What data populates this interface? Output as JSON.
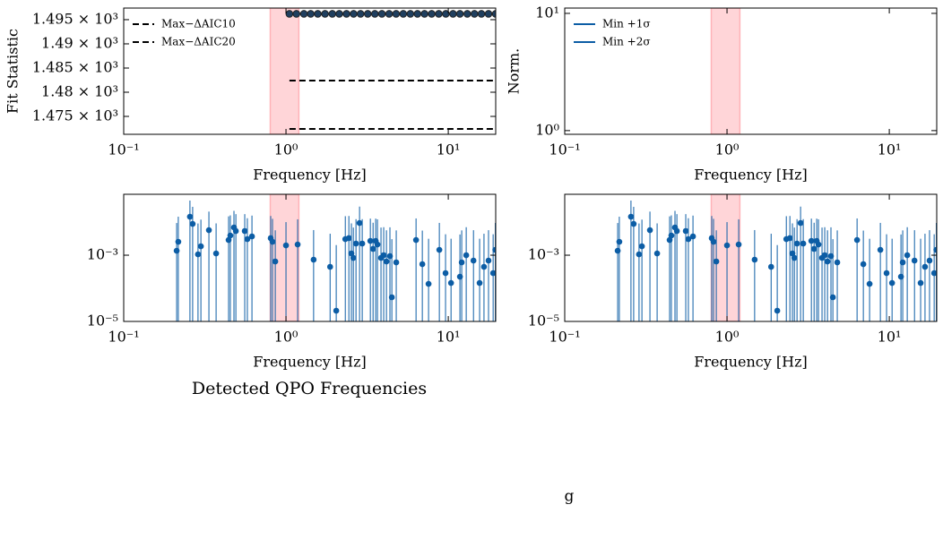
{
  "chart_data": [
    {
      "type": "scatter",
      "ylabel": "Fit Statistic",
      "xlabel": "Frequency [Hz]",
      "xscale": "log",
      "yscale": "linear",
      "xlim": [
        0.1,
        19.6
      ],
      "ylim": [
        1471.3,
        1497.4
      ],
      "xticks": [
        {
          "value": 0.1,
          "label": "10⁻¹"
        },
        {
          "value": 1,
          "label": "10⁰"
        },
        {
          "value": 10,
          "label": "10¹"
        }
      ],
      "yticks": [
        {
          "value": 1475,
          "label": "1.475 × 10³"
        },
        {
          "value": 1480,
          "label": "1.48 × 10³"
        },
        {
          "value": 1485,
          "label": "1.485 × 10³"
        },
        {
          "value": 1490,
          "label": "1.49 × 10³"
        },
        {
          "value": 1495,
          "label": "1.495 × 10³"
        }
      ],
      "shaded_region": {
        "span": [
          0.8,
          1.2
        ],
        "color": "#ffb3b8"
      },
      "series": [
        {
          "color": "#1f3f5f",
          "x": [
            1.05,
            1.16,
            1.29,
            1.42,
            1.57,
            1.74,
            1.93,
            2.13,
            2.36,
            2.61,
            2.88,
            3.19,
            3.53,
            3.9,
            4.32,
            4.77,
            5.28,
            5.84,
            6.46,
            7.14,
            7.9,
            8.74,
            9.66,
            10.7,
            11.8,
            13.1,
            14.5,
            16.0,
            17.7,
            19.6
          ],
          "values": [
            1496.2,
            1496.2,
            1496.2,
            1496.2,
            1496.2,
            1496.2,
            1496.2,
            1496.2,
            1496.2,
            1496.2,
            1496.2,
            1496.2,
            1496.2,
            1496.2,
            1496.2,
            1496.2,
            1496.2,
            1496.2,
            1496.2,
            1496.2,
            1496.2,
            1496.2,
            1496.2,
            1496.2,
            1496.2,
            1496.2,
            1496.2,
            1496.2,
            1496.2,
            1496.2
          ]
        }
      ],
      "hlines": [
        {
          "name": "Max−ΔAIC10",
          "y": 1482.4,
          "xmin": 1.05,
          "color": "#000000",
          "style": "dashed"
        },
        {
          "name": "Max−ΔAIC20",
          "y": 1472.4,
          "xmin": 1.05,
          "color": "#000000",
          "style": "dashed"
        }
      ],
      "legend": "upper left"
    },
    {
      "type": "line",
      "ylabel": "Norm.",
      "xlabel": "Frequency [Hz]",
      "xscale": "log",
      "yscale": "log",
      "xlim": [
        0.1,
        19.6
      ],
      "ylim": [
        0.93,
        11.1
      ],
      "xticks": [
        {
          "value": 0.1,
          "label": "10⁻¹"
        },
        {
          "value": 1,
          "label": "10⁰"
        },
        {
          "value": 10,
          "label": "10¹"
        }
      ],
      "yticks": [
        {
          "value": 1,
          "label": "10⁰"
        },
        {
          "value": 10,
          "label": "10¹"
        }
      ],
      "shaded_region": {
        "span": [
          0.8,
          1.2
        ],
        "color": "#ffb3b8"
      },
      "series": [
        {
          "name": "Min +1σ",
          "color": "#0c5da5"
        },
        {
          "name": "Min +2σ",
          "color": "#0c5da5"
        }
      ],
      "legend": "upper left"
    },
    {
      "type": "errorbar",
      "xlabel": "Frequency [Hz]",
      "xscale": "log",
      "yscale": "log",
      "xlim": [
        0.1,
        19.6
      ],
      "ylim": [
        1e-05,
        0.069
      ],
      "xticks": [
        {
          "value": 0.1,
          "label": "10⁻¹"
        },
        {
          "value": 1,
          "label": "10⁰"
        },
        {
          "value": 10,
          "label": "10¹"
        }
      ],
      "yticks": [
        {
          "value": 1e-05,
          "label": "10⁻⁵"
        },
        {
          "value": 0.001,
          "label": "10⁻³"
        }
      ],
      "shaded_region": {
        "span": [
          0.8,
          1.2
        ],
        "color": "#ffb3b8"
      },
      "series": [
        {
          "color": "#0c5da5",
          "x": [
            0.212,
            0.217,
            0.256,
            0.266,
            0.287,
            0.299,
            0.335,
            0.371,
            0.443,
            0.454,
            0.478,
            0.491,
            0.557,
            0.578,
            0.617,
            0.805,
            0.826,
            0.859,
            1.0,
            1.18,
            1.48,
            1.87,
            2.04,
            2.32,
            2.44,
            2.53,
            2.6,
            2.7,
            2.84,
            2.95,
            3.31,
            3.44,
            3.57,
            3.66,
            3.85,
            4.0,
            4.16,
            4.37,
            4.49,
            4.78,
            6.33,
            6.92,
            7.56,
            8.81,
            9.62,
            10.4,
            11.8,
            12.1,
            12.9,
            14.3,
            15.6,
            16.6,
            17.7,
            18.9,
            19.5
          ],
          "values": [
            0.00136,
            0.00254,
            0.0145,
            0.00883,
            0.00106,
            0.00186,
            0.00571,
            0.00113,
            0.00288,
            0.00393,
            0.00689,
            0.00537,
            0.00537,
            0.00306,
            0.0037,
            0.00327,
            0.00254,
            0.000647,
            0.00198,
            0.00211,
            0.000733,
            0.000446,
            2.11e-05,
            0.00306,
            0.00327,
            0.00113,
            0.00083,
            0.00225,
            0.0094,
            0.00225,
            0.0027,
            0.00155,
            0.0027,
            0.00211,
            0.00083,
            0.001,
            0.000647,
            0.00094,
            5.37e-05,
            0.000608,
            0.00288,
            0.000537,
            0.000136,
            0.00145,
            0.000288,
            0.000145,
            0.000224,
            0.000608,
            0.001,
            0.000689,
            0.000145,
            0.000446,
            0.000689,
            0.000288,
            0.00145
          ],
          "yerr": [
            0.008,
            0.012,
            0.03,
            0.02,
            0.008,
            0.01,
            0.015,
            0.008,
            0.012,
            0.012,
            0.015,
            0.012,
            0.012,
            0.01,
            0.012,
            0.012,
            0.01,
            0.005,
            0.008,
            0.01,
            0.005,
            0.004,
            0.002,
            0.012,
            0.012,
            0.008,
            0.006,
            0.01,
            0.02,
            0.01,
            0.01,
            0.008,
            0.01,
            0.01,
            0.006,
            0.006,
            0.005,
            0.006,
            0.003,
            0.005,
            0.01,
            0.005,
            0.003,
            0.008,
            0.004,
            0.003,
            0.004,
            0.005,
            0.006,
            0.005,
            0.003,
            0.004,
            0.005,
            0.004,
            0.008
          ]
        }
      ]
    },
    {
      "type": "errorbar",
      "xlabel": "Frequency [Hz]",
      "xscale": "log",
      "yscale": "log",
      "xlim": [
        0.1,
        19.6
      ],
      "ylim": [
        1e-05,
        0.069
      ],
      "xticks": [
        {
          "value": 0.1,
          "label": "10⁻¹"
        },
        {
          "value": 1,
          "label": "10⁰"
        },
        {
          "value": 10,
          "label": "10¹"
        }
      ],
      "yticks": [
        {
          "value": 1e-05,
          "label": "10⁻⁵"
        },
        {
          "value": 0.001,
          "label": "10⁻³"
        }
      ],
      "shaded_region": {
        "span": [
          0.8,
          1.2
        ],
        "color": "#ffb3b8"
      },
      "series": [
        {
          "color": "#0c5da5",
          "x": [
            0.212,
            0.217,
            0.256,
            0.266,
            0.287,
            0.299,
            0.335,
            0.371,
            0.443,
            0.454,
            0.478,
            0.491,
            0.557,
            0.578,
            0.617,
            0.805,
            0.826,
            0.859,
            1.0,
            1.18,
            1.48,
            1.87,
            2.04,
            2.32,
            2.44,
            2.53,
            2.6,
            2.7,
            2.84,
            2.95,
            3.31,
            3.44,
            3.57,
            3.66,
            3.85,
            4.0,
            4.16,
            4.37,
            4.49,
            4.78,
            6.33,
            6.92,
            7.56,
            8.81,
            9.62,
            10.4,
            11.8,
            12.1,
            12.9,
            14.3,
            15.6,
            16.6,
            17.7,
            18.9,
            19.5
          ],
          "values": [
            0.00136,
            0.00254,
            0.0145,
            0.00883,
            0.00106,
            0.00186,
            0.00571,
            0.00113,
            0.00288,
            0.00393,
            0.00689,
            0.00537,
            0.00537,
            0.00306,
            0.0037,
            0.00327,
            0.00254,
            0.000647,
            0.00198,
            0.00211,
            0.000733,
            0.000446,
            2.11e-05,
            0.00306,
            0.00327,
            0.00113,
            0.00083,
            0.00225,
            0.0094,
            0.00225,
            0.0027,
            0.00155,
            0.0027,
            0.00211,
            0.00083,
            0.001,
            0.000647,
            0.00094,
            5.37e-05,
            0.000608,
            0.00288,
            0.000537,
            0.000136,
            0.00145,
            0.000288,
            0.000145,
            0.000224,
            0.000608,
            0.001,
            0.000689,
            0.000145,
            0.000446,
            0.000689,
            0.000288,
            0.00145
          ],
          "yerr": [
            0.008,
            0.012,
            0.03,
            0.02,
            0.008,
            0.01,
            0.015,
            0.008,
            0.012,
            0.012,
            0.015,
            0.012,
            0.012,
            0.01,
            0.012,
            0.012,
            0.01,
            0.005,
            0.008,
            0.01,
            0.005,
            0.004,
            0.002,
            0.012,
            0.012,
            0.008,
            0.006,
            0.01,
            0.02,
            0.01,
            0.01,
            0.008,
            0.01,
            0.01,
            0.006,
            0.006,
            0.005,
            0.006,
            0.003,
            0.005,
            0.01,
            0.005,
            0.003,
            0.008,
            0.004,
            0.003,
            0.004,
            0.005,
            0.006,
            0.005,
            0.003,
            0.004,
            0.005,
            0.004,
            0.008
          ]
        }
      ]
    }
  ],
  "figure_title": "Detected QPO Frequencies",
  "stray_text": "g"
}
